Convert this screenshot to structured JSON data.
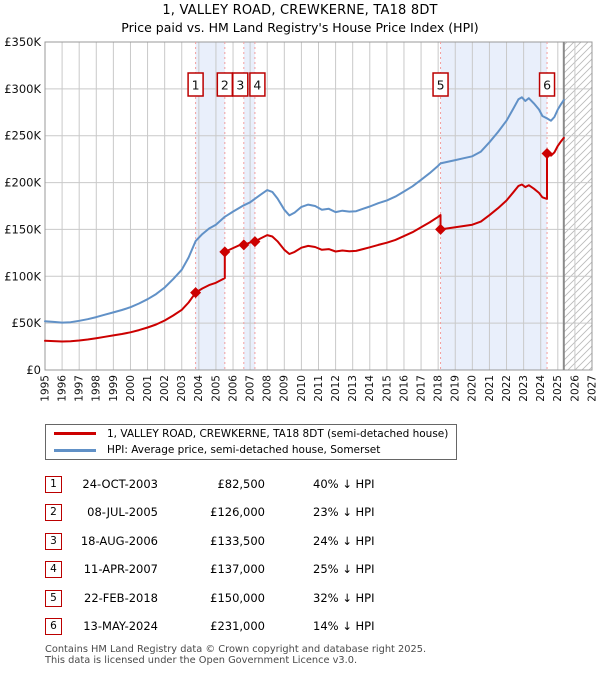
{
  "title": {
    "line1": "1, VALLEY ROAD, CREWKERNE, TA18 8DT",
    "line2": "Price paid vs. HM Land Registry's House Price Index (HPI)"
  },
  "legend": {
    "series": [
      {
        "id": "price-paid",
        "label": "1, VALLEY ROAD, CREWKERNE, TA18 8DT (semi-detached house)",
        "color": "#cc0000"
      },
      {
        "id": "hpi",
        "label": "HPI: Average price, semi-detached house, Somerset",
        "color": "#6191c7"
      }
    ]
  },
  "transactions": [
    {
      "num": "1",
      "date": "24-OCT-2003",
      "year": 2003.81,
      "price": 82500,
      "price_label": "£82,500",
      "vs_hpi": "40% ↓ HPI"
    },
    {
      "num": "2",
      "date": "08-JUL-2005",
      "year": 2005.52,
      "price": 126000,
      "price_label": "£126,000",
      "vs_hpi": "23% ↓ HPI"
    },
    {
      "num": "3",
      "date": "18-AUG-2006",
      "year": 2006.63,
      "price": 133500,
      "price_label": "£133,500",
      "vs_hpi": "24% ↓ HPI"
    },
    {
      "num": "4",
      "date": "11-APR-2007",
      "year": 2007.28,
      "price": 137000,
      "price_label": "£137,000",
      "vs_hpi": "25% ↓ HPI"
    },
    {
      "num": "5",
      "date": "22-FEB-2018",
      "year": 2018.14,
      "price": 150000,
      "price_label": "£150,000",
      "vs_hpi": "32% ↓ HPI"
    },
    {
      "num": "6",
      "date": "13-MAY-2024",
      "year": 2024.37,
      "price": 231000,
      "price_label": "£231,000",
      "vs_hpi": "14% ↓ HPI"
    }
  ],
  "footer": {
    "line1": "Contains HM Land Registry data © Crown copyright and database right 2025.",
    "line2": "This data is licensed under the Open Government Licence v3.0."
  },
  "chart_data": {
    "type": "line",
    "title": "1, VALLEY ROAD, CREWKERNE, TA18 8DT — Price paid vs. HPI",
    "x_axis": {
      "range": [
        1995,
        2027
      ],
      "ticks": [
        1995,
        1996,
        1997,
        1998,
        1999,
        2000,
        2001,
        2002,
        2003,
        2004,
        2005,
        2006,
        2007,
        2008,
        2009,
        2010,
        2011,
        2012,
        2013,
        2014,
        2015,
        2016,
        2017,
        2018,
        2019,
        2020,
        2021,
        2022,
        2023,
        2024,
        2025,
        2026,
        2027
      ]
    },
    "y_axis": {
      "range": [
        0,
        350000
      ],
      "tick_values": [
        0,
        50000,
        100000,
        150000,
        200000,
        250000,
        300000,
        350000
      ],
      "tick_labels": [
        "£0",
        "£50K",
        "£100K",
        "£150K",
        "£200K",
        "£250K",
        "£300K",
        "£350K"
      ]
    },
    "grid": true,
    "legend_position": "below",
    "future_hatch_start": 2025.35,
    "ownership_bands": [
      [
        2003.81,
        2005.52
      ],
      [
        2006.63,
        2007.28
      ],
      [
        2018.14,
        2024.37
      ]
    ],
    "sale_label_dx": {
      "3": -3.5,
      "4": 2.5
    },
    "colors": {
      "price": "#cc0000",
      "hpi": "#6191c7",
      "band": "#e9effb",
      "dashed": "#f29e9e",
      "grid": "#c9c9c9",
      "frame": "#999999",
      "hatch": "#bbbbbb",
      "box_border": "#bb0000"
    },
    "series": [
      {
        "name": "hpi",
        "color": "#6191c7",
        "points": [
          [
            1995.0,
            52000
          ],
          [
            1995.5,
            51300
          ],
          [
            1996.0,
            50600
          ],
          [
            1996.5,
            51000
          ],
          [
            1997.0,
            52500
          ],
          [
            1997.5,
            54200
          ],
          [
            1998.0,
            56500
          ],
          [
            1998.5,
            59000
          ],
          [
            1999.0,
            61500
          ],
          [
            1999.5,
            64000
          ],
          [
            2000.0,
            67000
          ],
          [
            2000.5,
            71000
          ],
          [
            2001.0,
            75500
          ],
          [
            2001.5,
            81000
          ],
          [
            2002.0,
            88000
          ],
          [
            2002.5,
            97000
          ],
          [
            2003.0,
            107000
          ],
          [
            2003.4,
            120000
          ],
          [
            2003.81,
            137500
          ],
          [
            2004.2,
            145000
          ],
          [
            2004.6,
            151000
          ],
          [
            2005.0,
            155000
          ],
          [
            2005.52,
            163500
          ],
          [
            2006.0,
            169000
          ],
          [
            2006.63,
            175700
          ],
          [
            2007.0,
            179000
          ],
          [
            2007.28,
            182700
          ],
          [
            2007.6,
            187000
          ],
          [
            2008.0,
            192000
          ],
          [
            2008.3,
            190000
          ],
          [
            2008.6,
            183000
          ],
          [
            2009.0,
            171000
          ],
          [
            2009.3,
            165000
          ],
          [
            2009.6,
            168000
          ],
          [
            2010.0,
            174000
          ],
          [
            2010.4,
            176500
          ],
          [
            2010.8,
            175000
          ],
          [
            2011.2,
            171000
          ],
          [
            2011.6,
            172000
          ],
          [
            2012.0,
            168500
          ],
          [
            2012.4,
            170000
          ],
          [
            2012.8,
            169000
          ],
          [
            2013.2,
            169500
          ],
          [
            2013.6,
            172000
          ],
          [
            2014.0,
            174500
          ],
          [
            2014.5,
            178000
          ],
          [
            2015.0,
            181000
          ],
          [
            2015.5,
            185000
          ],
          [
            2016.0,
            190500
          ],
          [
            2016.5,
            196000
          ],
          [
            2017.0,
            203000
          ],
          [
            2017.5,
            210000
          ],
          [
            2018.0,
            218000
          ],
          [
            2018.14,
            220500
          ],
          [
            2018.5,
            222000
          ],
          [
            2019.0,
            224000
          ],
          [
            2019.5,
            226000
          ],
          [
            2020.0,
            228000
          ],
          [
            2020.5,
            233000
          ],
          [
            2021.0,
            243000
          ],
          [
            2021.5,
            254000
          ],
          [
            2022.0,
            266000
          ],
          [
            2022.4,
            279000
          ],
          [
            2022.7,
            289000
          ],
          [
            2022.9,
            291000
          ],
          [
            2023.1,
            287000
          ],
          [
            2023.3,
            290000
          ],
          [
            2023.6,
            284500
          ],
          [
            2023.9,
            278000
          ],
          [
            2024.1,
            271000
          ],
          [
            2024.37,
            268500
          ],
          [
            2024.6,
            266000
          ],
          [
            2024.8,
            270000
          ],
          [
            2025.0,
            278000
          ],
          [
            2025.2,
            284000
          ],
          [
            2025.35,
            288000
          ]
        ]
      },
      {
        "name": "price-paid",
        "color": "#cc0000",
        "points": [
          [
            1995.0,
            31200
          ],
          [
            1995.5,
            30800
          ],
          [
            1996.0,
            30400
          ],
          [
            1996.5,
            30600
          ],
          [
            1997.0,
            31500
          ],
          [
            1997.5,
            32500
          ],
          [
            1998.0,
            33900
          ],
          [
            1998.5,
            35400
          ],
          [
            1999.0,
            36900
          ],
          [
            1999.5,
            38400
          ],
          [
            2000.0,
            40200
          ],
          [
            2000.5,
            42600
          ],
          [
            2001.0,
            45300
          ],
          [
            2001.5,
            48600
          ],
          [
            2002.0,
            52800
          ],
          [
            2002.5,
            58200
          ],
          [
            2003.0,
            64200
          ],
          [
            2003.4,
            72000
          ],
          [
            2003.81,
            82500
          ],
          [
            2004.2,
            87000
          ],
          [
            2004.6,
            90600
          ],
          [
            2005.0,
            93000
          ],
          [
            2005.52,
            98100
          ],
          [
            2005.52,
            126000
          ],
          [
            2006.0,
            130100
          ],
          [
            2006.63,
            135300
          ],
          [
            2006.63,
            133500
          ],
          [
            2007.0,
            136100
          ],
          [
            2007.28,
            138900
          ],
          [
            2007.28,
            137000
          ],
          [
            2007.6,
            140300
          ],
          [
            2008.0,
            144000
          ],
          [
            2008.3,
            142500
          ],
          [
            2008.6,
            137300
          ],
          [
            2009.0,
            128300
          ],
          [
            2009.3,
            123800
          ],
          [
            2009.6,
            126000
          ],
          [
            2010.0,
            130500
          ],
          [
            2010.4,
            132400
          ],
          [
            2010.8,
            131300
          ],
          [
            2011.2,
            128300
          ],
          [
            2011.6,
            129000
          ],
          [
            2012.0,
            126400
          ],
          [
            2012.4,
            127500
          ],
          [
            2012.8,
            126800
          ],
          [
            2013.2,
            127100
          ],
          [
            2013.6,
            129000
          ],
          [
            2014.0,
            130900
          ],
          [
            2014.5,
            133500
          ],
          [
            2015.0,
            135800
          ],
          [
            2015.5,
            138800
          ],
          [
            2016.0,
            142900
          ],
          [
            2016.5,
            147000
          ],
          [
            2017.0,
            152300
          ],
          [
            2017.5,
            157500
          ],
          [
            2018.0,
            163500
          ],
          [
            2018.14,
            165400
          ],
          [
            2018.14,
            150000
          ],
          [
            2018.5,
            151000
          ],
          [
            2019.0,
            152300
          ],
          [
            2019.5,
            153700
          ],
          [
            2020.0,
            155000
          ],
          [
            2020.5,
            158400
          ],
          [
            2021.0,
            165200
          ],
          [
            2021.5,
            172700
          ],
          [
            2022.0,
            180900
          ],
          [
            2022.4,
            189700
          ],
          [
            2022.7,
            196500
          ],
          [
            2022.9,
            197900
          ],
          [
            2023.1,
            195200
          ],
          [
            2023.3,
            197200
          ],
          [
            2023.6,
            193500
          ],
          [
            2023.9,
            189000
          ],
          [
            2024.1,
            184300
          ],
          [
            2024.37,
            182600
          ],
          [
            2024.37,
            231000
          ],
          [
            2024.6,
            228800
          ],
          [
            2024.8,
            232200
          ],
          [
            2025.0,
            239100
          ],
          [
            2025.2,
            244200
          ],
          [
            2025.35,
            247700
          ]
        ]
      }
    ]
  }
}
